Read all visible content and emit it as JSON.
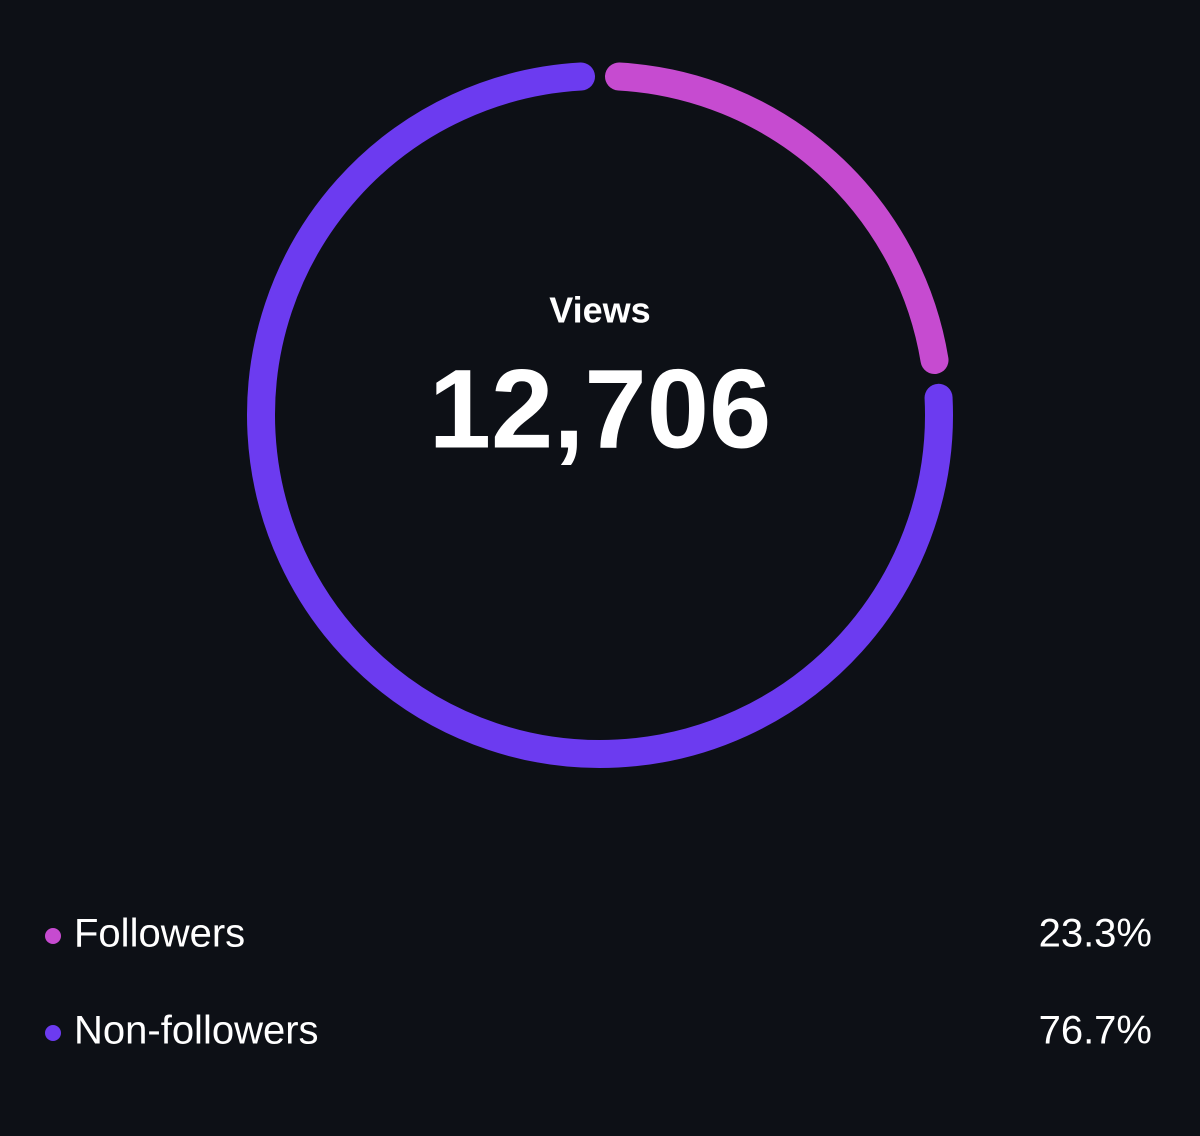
{
  "chart_data": {
    "type": "donut",
    "center_label": "Views",
    "total": {
      "value": 12706,
      "label": "12,706"
    },
    "categories": [
      "Followers",
      "Non-followers"
    ],
    "values": [
      23.3,
      76.7
    ],
    "value_labels": [
      "23.3%",
      "76.7%"
    ],
    "colors": [
      "#c64bd0",
      "#6c3bf0"
    ]
  }
}
